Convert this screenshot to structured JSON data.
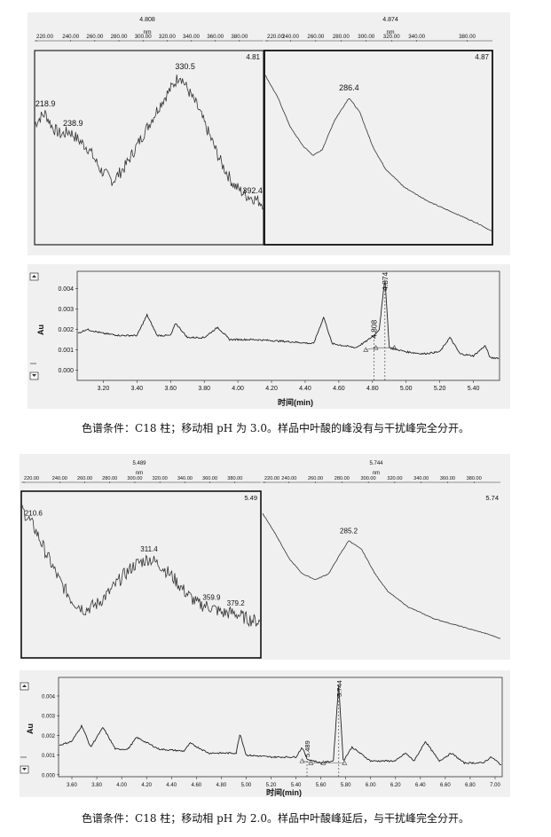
{
  "figures": [
    {
      "spectra": [
        {
          "header_value": "4.808",
          "axis_unit": "nm",
          "axis_ticks": [
            "220.00",
            "240.00",
            "260.00",
            "280.00",
            "300.00",
            "320.00",
            "340.00",
            "360.00",
            "380.00"
          ],
          "time_label": "4.81",
          "peak_labels": [
            "218.9",
            "238.9",
            "330.5",
            "392.4"
          ],
          "boxed": true
        },
        {
          "header_value": "4.874",
          "axis_unit": "nm",
          "axis_ticks": [
            "220.00",
            "240.00",
            "260.00",
            "280.00",
            "300.00",
            "320.00",
            "340.00",
            "380.00"
          ],
          "time_label": "4.87",
          "peak_labels": [
            "286.4"
          ],
          "boxed": true
        }
      ],
      "chromatogram": {
        "ylabel": "Au",
        "yticks": [
          "0.004",
          "0.003",
          "0.002",
          "0.001",
          "0.000"
        ],
        "xticks": [
          "3.20",
          "3.40",
          "3.60",
          "3.80",
          "4.00",
          "4.20",
          "4.40",
          "4.60",
          "4.80",
          "5.00",
          "5.20",
          "5.40"
        ],
        "xlabel": "时间(min)",
        "peak_labels": [
          "4.808",
          "4.874"
        ]
      },
      "caption": "色谱条件：C18 柱；移动相 pH 为 3.0。样品中叶酸的峰没有与干扰峰完全分开。"
    },
    {
      "spectra": [
        {
          "header_value": "5.489",
          "axis_unit": "nm",
          "axis_ticks": [
            "220.00",
            "240.00",
            "260.00",
            "280.00",
            "300.00",
            "320.00",
            "340.00",
            "360.00",
            "380.00"
          ],
          "time_label": "5.49",
          "peak_labels": [
            "210.6",
            "311.4",
            "359.9",
            "379.2"
          ],
          "boxed": true
        },
        {
          "header_value": "5.744",
          "axis_unit": "nm",
          "axis_ticks": [
            "220.00",
            "240.00",
            "260.00",
            "280.00",
            "300.00",
            "320.00",
            "340.00",
            "360.00",
            "380.00"
          ],
          "time_label": "5.74",
          "peak_labels": [
            "285.2"
          ],
          "boxed": false
        }
      ],
      "chromatogram": {
        "ylabel": "Au",
        "yticks": [
          "0.004",
          "0.003",
          "0.002",
          "0.001",
          "0.000"
        ],
        "xticks": [
          "3.60",
          "3.80",
          "4.00",
          "4.20",
          "4.40",
          "4.60",
          "4.80",
          "5.00",
          "5.20",
          "5.40",
          "5.60",
          "5.80",
          "6.00",
          "6.20",
          "6.40",
          "6.60",
          "6.80",
          "7.00"
        ],
        "xlabel": "时间(min)",
        "peak_labels": [
          "5.489",
          "5.744"
        ]
      },
      "caption": "色谱条件：C18 柱；移动相 pH 为 2.0。样品中叶酸峰延后，与干扰峰完全分开。"
    }
  ],
  "chart_data": [
    {
      "type": "line",
      "title": "4.808",
      "xlabel": "nm",
      "xlim": [
        210,
        400
      ],
      "series": [
        {
          "x": [
            210,
            215,
            218.9,
            225,
            232,
            238.9,
            245,
            255,
            265,
            275,
            285,
            295,
            305,
            315,
            325,
            330.5,
            335,
            345,
            355,
            365,
            375,
            385,
            392.4,
            400
          ],
          "y": [
            0.62,
            0.66,
            0.68,
            0.6,
            0.56,
            0.58,
            0.54,
            0.48,
            0.36,
            0.3,
            0.38,
            0.5,
            0.62,
            0.74,
            0.84,
            0.9,
            0.84,
            0.72,
            0.56,
            0.4,
            0.28,
            0.22,
            0.2,
            0.17
          ]
        }
      ],
      "annotations": [
        "218.9",
        "238.9",
        "330.5",
        "392.4"
      ]
    },
    {
      "type": "line",
      "title": "4.874",
      "xlabel": "nm",
      "xlim": [
        220,
        400
      ],
      "series": [
        {
          "x": [
            220,
            230,
            240,
            250,
            258,
            265,
            275,
            286.4,
            295,
            305,
            315,
            330,
            350,
            370,
            390,
            400
          ],
          "y": [
            0.9,
            0.78,
            0.62,
            0.52,
            0.47,
            0.5,
            0.66,
            0.78,
            0.7,
            0.52,
            0.4,
            0.3,
            0.22,
            0.16,
            0.1,
            0.06
          ]
        }
      ],
      "annotations": [
        "286.4"
      ]
    },
    {
      "type": "line",
      "ylabel": "Au",
      "xlabel": "时间(min)",
      "xlim": [
        3.05,
        5.55
      ],
      "ylim": [
        -0.0005,
        0.0048
      ],
      "series": [
        {
          "x": [
            3.05,
            3.1,
            3.2,
            3.3,
            3.4,
            3.46,
            3.52,
            3.6,
            3.63,
            3.7,
            3.8,
            3.88,
            3.95,
            4.1,
            4.3,
            4.45,
            4.51,
            4.56,
            4.7,
            4.76,
            4.808,
            4.84,
            4.874,
            4.9,
            5.0,
            5.1,
            5.2,
            5.26,
            5.32,
            5.4,
            5.47,
            5.5,
            5.55
          ],
          "y": [
            0.0018,
            0.002,
            0.0018,
            0.0017,
            0.0017,
            0.0027,
            0.0017,
            0.0017,
            0.0023,
            0.0016,
            0.0016,
            0.0021,
            0.0015,
            0.0015,
            0.0014,
            0.0013,
            0.0026,
            0.0013,
            0.0011,
            0.0014,
            0.0017,
            0.002,
            0.0045,
            0.0011,
            0.0009,
            0.0008,
            0.0009,
            0.0016,
            0.0008,
            0.0007,
            0.0012,
            0.0006,
            0.0006
          ]
        }
      ],
      "annotations": [
        "4.808",
        "4.874"
      ]
    },
    {
      "type": "line",
      "title": "5.489",
      "xlabel": "nm",
      "xlim": [
        210,
        400
      ],
      "series": [
        {
          "x": [
            210.6,
            220,
            230,
            240,
            250,
            260,
            270,
            280,
            290,
            300,
            311.4,
            320,
            330,
            340,
            350,
            359.9,
            370,
            379.2,
            390,
            400
          ],
          "y": [
            0.92,
            0.8,
            0.62,
            0.45,
            0.32,
            0.26,
            0.3,
            0.38,
            0.48,
            0.56,
            0.6,
            0.56,
            0.48,
            0.38,
            0.3,
            0.28,
            0.24,
            0.24,
            0.2,
            0.18
          ]
        }
      ],
      "annotations": [
        "210.6",
        "311.4",
        "359.9",
        "379.2"
      ]
    },
    {
      "type": "line",
      "title": "5.744",
      "xlabel": "nm",
      "xlim": [
        220,
        400
      ],
      "series": [
        {
          "x": [
            220,
            230,
            240,
            250,
            260,
            270,
            278,
            285.2,
            295,
            305,
            315,
            330,
            350,
            370,
            390,
            400
          ],
          "y": [
            0.9,
            0.76,
            0.6,
            0.5,
            0.46,
            0.5,
            0.62,
            0.72,
            0.66,
            0.5,
            0.38,
            0.28,
            0.2,
            0.15,
            0.1,
            0.07
          ]
        }
      ],
      "annotations": [
        "285.2"
      ]
    },
    {
      "type": "line",
      "ylabel": "Au",
      "xlabel": "时间(min)",
      "xlim": [
        3.5,
        7.05
      ],
      "ylim": [
        -0.0001,
        0.0049
      ],
      "series": [
        {
          "x": [
            3.5,
            3.6,
            3.68,
            3.75,
            3.85,
            3.95,
            4.05,
            4.12,
            4.3,
            4.5,
            4.55,
            4.7,
            4.92,
            4.95,
            5.0,
            5.2,
            5.4,
            5.45,
            5.489,
            5.6,
            5.7,
            5.744,
            5.78,
            5.85,
            6.0,
            6.2,
            6.28,
            6.35,
            6.44,
            6.55,
            6.65,
            6.75,
            6.9,
            6.97,
            7.05
          ],
          "y": [
            0.0015,
            0.0017,
            0.0025,
            0.0014,
            0.0024,
            0.0013,
            0.0013,
            0.0019,
            0.0013,
            0.0012,
            0.0016,
            0.0011,
            0.0011,
            0.0021,
            0.001,
            0.0009,
            0.0009,
            0.0014,
            0.0008,
            0.0006,
            0.0007,
            0.0046,
            0.0007,
            0.0014,
            0.0007,
            0.0007,
            0.0011,
            0.0007,
            0.0017,
            0.0007,
            0.0011,
            0.0006,
            0.0006,
            0.0009,
            0.0005
          ]
        }
      ],
      "annotations": [
        "5.489",
        "5.744"
      ]
    }
  ]
}
